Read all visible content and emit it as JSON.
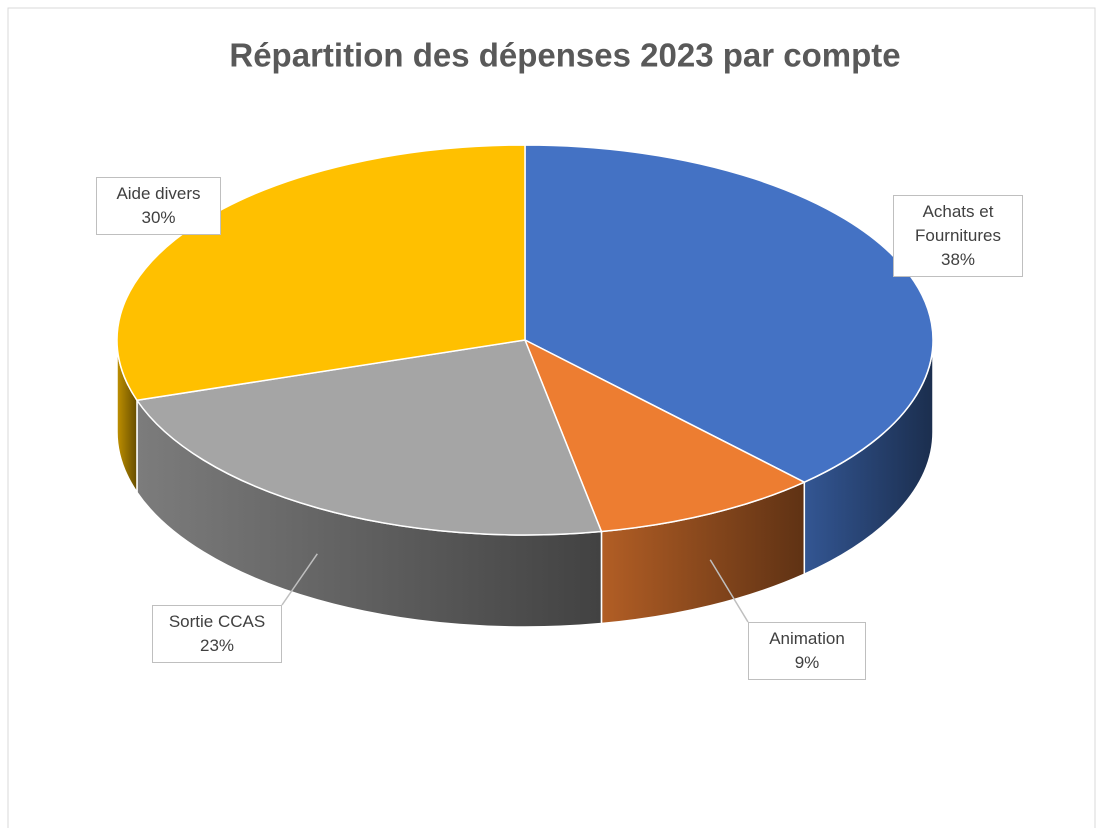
{
  "chart_data": {
    "type": "pie3d",
    "title": "Répartition des dépenses 2023 par compte",
    "categories": [
      "Achats et Fournitures",
      "Animation",
      "Sortie CCAS",
      "Aide divers"
    ],
    "values": [
      38,
      9,
      23,
      30
    ],
    "value_labels": [
      "38%",
      "9%",
      "23%",
      "30%"
    ],
    "colors": [
      "#4472c4",
      "#ed7d31",
      "#a5a5a5",
      "#ffc000"
    ]
  }
}
